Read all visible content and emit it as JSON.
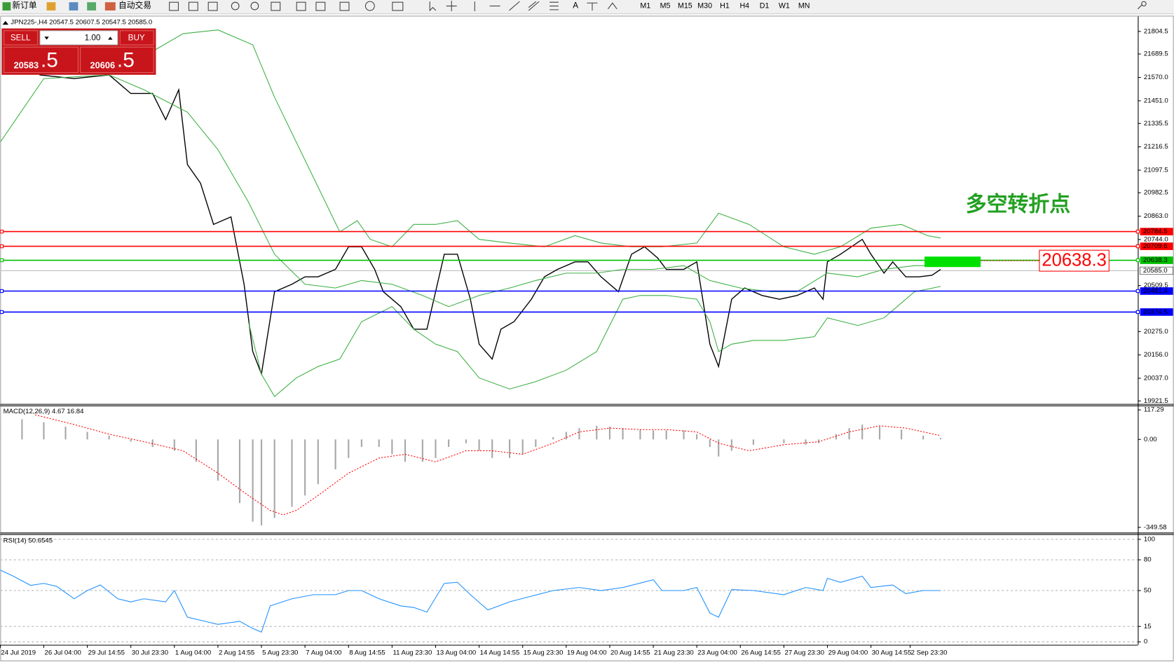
{
  "toolbar": {
    "new_order": "新订单",
    "auto_trade": "自动交易",
    "timeframes": [
      "M1",
      "M5",
      "M15",
      "M30",
      "H1",
      "H4",
      "D1",
      "W1",
      "MN"
    ]
  },
  "chart_header": "JPN225-,H4  20547.5 20607.5 20547.5 20585.0",
  "trade_panel": {
    "sell": "SELL",
    "lots": "1.00",
    "buy": "BUY",
    "bid_big": "20583",
    "bid_small": ".5",
    "ask_big": "20606",
    "ask_small": ".5"
  },
  "annotation": "多空转折点",
  "macd_label": "MACD(12,26,9) 4.67 16.84",
  "rsi_label": "RSI(14) 50.6545",
  "chart_data": [
    {
      "type": "line",
      "xlim": [
        0,
        261.3
      ],
      "ylim": [
        19921.5,
        21804.5
      ],
      "yticks": [
        21804.5,
        21689.5,
        {
          "value": 21570,
          "label": "21570.0"
        },
        {
          "value": 21451,
          "label": "21451.0"
        },
        21335.5,
        21216.5,
        21097.5,
        20982.5,
        {
          "value": 20863,
          "label": "20863.0"
        },
        {
          "value": 20744,
          "label": "20744.0"
        },
        20509.5,
        {
          "value": 20275,
          "label": "20275.0"
        },
        {
          "value": 20156,
          "label": "20156.0"
        },
        {
          "value": 20037,
          "label": "20037.0"
        },
        19921.5
      ],
      "xticks": [
        {
          "value": 0,
          "label": "24 Jul 2019"
        },
        {
          "value": 10,
          "label": "26 Jul 04:00"
        },
        {
          "value": 20,
          "label": "29 Jul 14:55"
        },
        {
          "value": 30,
          "label": "30 Jul 23:30"
        },
        {
          "value": 40,
          "label": "1 Aug 04:00"
        },
        {
          "value": 50,
          "label": "2 Aug 14:55"
        },
        {
          "value": 60,
          "label": "5 Aug 23:30"
        },
        {
          "value": 70,
          "label": "7 Aug 04:00"
        },
        {
          "value": 80,
          "label": "8 Aug 14:55"
        },
        {
          "value": 90,
          "label": "11 Aug 23:30"
        },
        {
          "value": 100,
          "label": "13 Aug 04:00"
        },
        {
          "value": 110,
          "label": "14 Aug 14:55"
        },
        {
          "value": 120,
          "label": "15 Aug 23:30"
        },
        {
          "value": 130,
          "label": "19 Aug 04:00"
        },
        {
          "value": 140,
          "label": "20 Aug 14:55"
        },
        {
          "value": 150,
          "label": "21 Aug 23:30"
        },
        {
          "value": 160,
          "label": "23 Aug 04:00"
        },
        {
          "value": 170,
          "label": "26 Aug 14:55"
        },
        {
          "value": 180,
          "label": "27 Aug 23:30"
        },
        {
          "value": 190,
          "label": "29 Aug 04:00"
        },
        {
          "value": 200,
          "label": "30 Aug 14:55"
        },
        {
          "value": 209,
          "label": "2 Sep 23:30"
        }
      ],
      "levels": [
        20784.5,
        20709.6,
        20638.3,
        20481.4,
        20374.5
      ],
      "level_colors": [
        "#ff0000",
        "#ff0000",
        "#00c000",
        "#0000ff",
        "#0000ff"
      ],
      "current_price": {
        "value": 20585,
        "label": "20585.0"
      },
      "series": [
        {
          "color": "#000000",
          "width": 1.3,
          "x": [
            9,
            17,
            25,
            30,
            35,
            38,
            41,
            43,
            46,
            49,
            53,
            56,
            58,
            60,
            63,
            67,
            70,
            73,
            77,
            80,
            83,
            86,
            88,
            92,
            95,
            98,
            102,
            105,
            108,
            110,
            113,
            115,
            118,
            122,
            125,
            128,
            132,
            135,
            138,
            142,
            145,
            148,
            151,
            153,
            157,
            160,
            163,
            165,
            168,
            171,
            175,
            179,
            183,
            187,
            189,
            190,
            193,
            198,
            200,
            203,
            205,
            208,
            211,
            214,
            216
          ],
          "values": [
            21583,
            21564,
            21583,
            21488,
            21488,
            21355,
            21507,
            21126,
            21031,
            20821,
            20859,
            20516,
            20173,
            20059,
            20478,
            20516,
            20554,
            20554,
            20592,
            20707,
            20707,
            20592,
            20478,
            20402,
            20287,
            20287,
            20669,
            20669,
            20440,
            20211,
            20135,
            20287,
            20325,
            20440,
            20554,
            20592,
            20630,
            20630,
            20554,
            20478,
            20669,
            20707,
            20650,
            20592,
            20592,
            20630,
            20211,
            20097,
            20440,
            20497,
            20459,
            20440,
            20459,
            20497,
            20440,
            20630,
            20669,
            20745,
            20669,
            20573,
            20630,
            20554,
            20554,
            20562,
            20592
          ]
        },
        {
          "color": "#3cb043",
          "width": 1,
          "x": [
            34,
            42,
            50,
            58,
            63,
            68,
            73,
            78,
            82,
            85,
            90,
            95,
            100,
            105,
            110,
            117,
            125,
            132,
            138,
            145,
            152,
            160,
            165,
            172,
            180,
            187,
            193,
            200,
            207,
            213,
            216
          ],
          "values": [
            21690,
            21793,
            21812,
            21736,
            21469,
            21240,
            21012,
            20783,
            20840,
            20745,
            20707,
            20821,
            20821,
            20840,
            20745,
            20726,
            20707,
            20764,
            20726,
            20707,
            20707,
            20726,
            20878,
            20821,
            20707,
            20669,
            20707,
            20802,
            20821,
            20764,
            20752
          ]
        },
        {
          "color": "#3cb043",
          "width": 1,
          "x": [
            0,
            10,
            25,
            33,
            43,
            50,
            57,
            63,
            70,
            77,
            83,
            90,
            97,
            103,
            110,
            117,
            123,
            130,
            137,
            143,
            150,
            157,
            163,
            170,
            177,
            183,
            190,
            197,
            203,
            210,
            216
          ],
          "values": [
            21240,
            21564,
            21583,
            21507,
            21393,
            21202,
            20935,
            20669,
            20516,
            20497,
            20535,
            20516,
            20459,
            20402,
            20459,
            20497,
            20535,
            20573,
            20573,
            20592,
            20592,
            20611,
            20535,
            20497,
            20478,
            20478,
            20573,
            20554,
            20592,
            20611,
            20611
          ]
        },
        {
          "color": "#3cb043",
          "width": 1,
          "x": [
            57,
            60,
            63,
            68,
            73,
            78,
            83,
            90,
            95,
            100,
            105,
            110,
            117,
            123,
            130,
            137,
            143,
            147,
            153,
            160,
            163,
            165,
            168,
            173,
            180,
            187,
            190,
            197,
            203,
            210,
            216
          ],
          "values": [
            20325,
            20058,
            19944,
            20039,
            20097,
            20135,
            20325,
            20402,
            20287,
            20211,
            20173,
            20039,
            19982,
            20020,
            20078,
            20173,
            20440,
            20459,
            20459,
            20440,
            20325,
            20173,
            20211,
            20230,
            20230,
            20249,
            20345,
            20306,
            20345,
            20478,
            20505
          ]
        }
      ]
    },
    {
      "type": "macd",
      "xlim": [
        0,
        261.3
      ],
      "ylim": [
        -349.58,
        117.29
      ],
      "yticks": [
        117.29,
        {
          "value": 0,
          "label": "0.00"
        },
        -349.58
      ],
      "series": [
        {
          "style": "histogram",
          "color": "#a8a8a8",
          "x": [
            0,
            5,
            10,
            15,
            20,
            25,
            30,
            35,
            40,
            45,
            50,
            55,
            58,
            60,
            63,
            67,
            70,
            73,
            77,
            80,
            83,
            87,
            90,
            93,
            97,
            100,
            103,
            107,
            110,
            113,
            117,
            120,
            123,
            127,
            130,
            133,
            137,
            140,
            143,
            147,
            150,
            153,
            157,
            160,
            163,
            165,
            168,
            173,
            180,
            185,
            188,
            192,
            195,
            198,
            202,
            207,
            212,
            216
          ],
          "values": [
            89,
            80,
            68,
            51,
            30,
            15,
            -9,
            -30,
            -45,
            -89,
            -164,
            -253,
            -327,
            -342,
            -312,
            -268,
            -223,
            -178,
            -119,
            -74,
            -30,
            -30,
            -59,
            -89,
            -89,
            -74,
            -30,
            -15,
            -45,
            -74,
            -74,
            -59,
            -30,
            9,
            30,
            45,
            54,
            51,
            45,
            39,
            36,
            36,
            36,
            21,
            -30,
            -68,
            -45,
            -21,
            -15,
            -21,
            -15,
            21,
            45,
            59,
            51,
            39,
            15,
            6
          ]
        },
        {
          "style": "dotted",
          "color": "#ff0000",
          "x": [
            8,
            17,
            25,
            33,
            42,
            50,
            57,
            62,
            65,
            68,
            73,
            80,
            87,
            93,
            100,
            107,
            113,
            120,
            127,
            133,
            140,
            147,
            153,
            160,
            165,
            172,
            180,
            188,
            195,
            202,
            208,
            216
          ],
          "values": [
            98,
            59,
            21,
            -9,
            -45,
            -134,
            -223,
            -282,
            -300,
            -282,
            -223,
            -134,
            -74,
            -59,
            -89,
            -45,
            -45,
            -59,
            -15,
            30,
            45,
            39,
            39,
            30,
            -15,
            -45,
            -21,
            -9,
            30,
            54,
            45,
            15
          ]
        }
      ]
    },
    {
      "type": "line",
      "xlim": [
        0,
        261.3
      ],
      "ylim": [
        0,
        100
      ],
      "yticks": [
        100,
        80,
        50,
        15,
        0
      ],
      "grid": true,
      "series": [
        {
          "color": "#1e90ff",
          "width": 1,
          "x": [
            0,
            3,
            7,
            10,
            13,
            17,
            20,
            23,
            27,
            30,
            33,
            38,
            40,
            43,
            47,
            50,
            55,
            58,
            60,
            62,
            67,
            72,
            77,
            80,
            83,
            87,
            92,
            95,
            98,
            102,
            105,
            108,
            112,
            117,
            122,
            127,
            133,
            138,
            143,
            150,
            152,
            157,
            160,
            163,
            165,
            168,
            173,
            180,
            185,
            189,
            190,
            193,
            198,
            200,
            205,
            208,
            212,
            216
          ],
          "values": [
            70,
            64,
            55,
            57,
            54,
            42,
            50,
            55.5,
            42,
            39,
            42,
            39,
            50,
            24,
            20,
            17,
            20,
            13,
            9.5,
            35,
            42,
            46,
            46,
            50,
            50,
            42,
            35,
            33.5,
            29,
            57,
            58,
            46,
            31,
            39,
            44.5,
            50,
            53,
            50,
            53,
            60.5,
            50,
            50,
            53,
            28,
            24,
            51,
            50,
            46,
            53,
            50,
            62,
            58,
            64,
            53,
            55.5,
            47,
            50,
            50
          ]
        }
      ]
    }
  ]
}
